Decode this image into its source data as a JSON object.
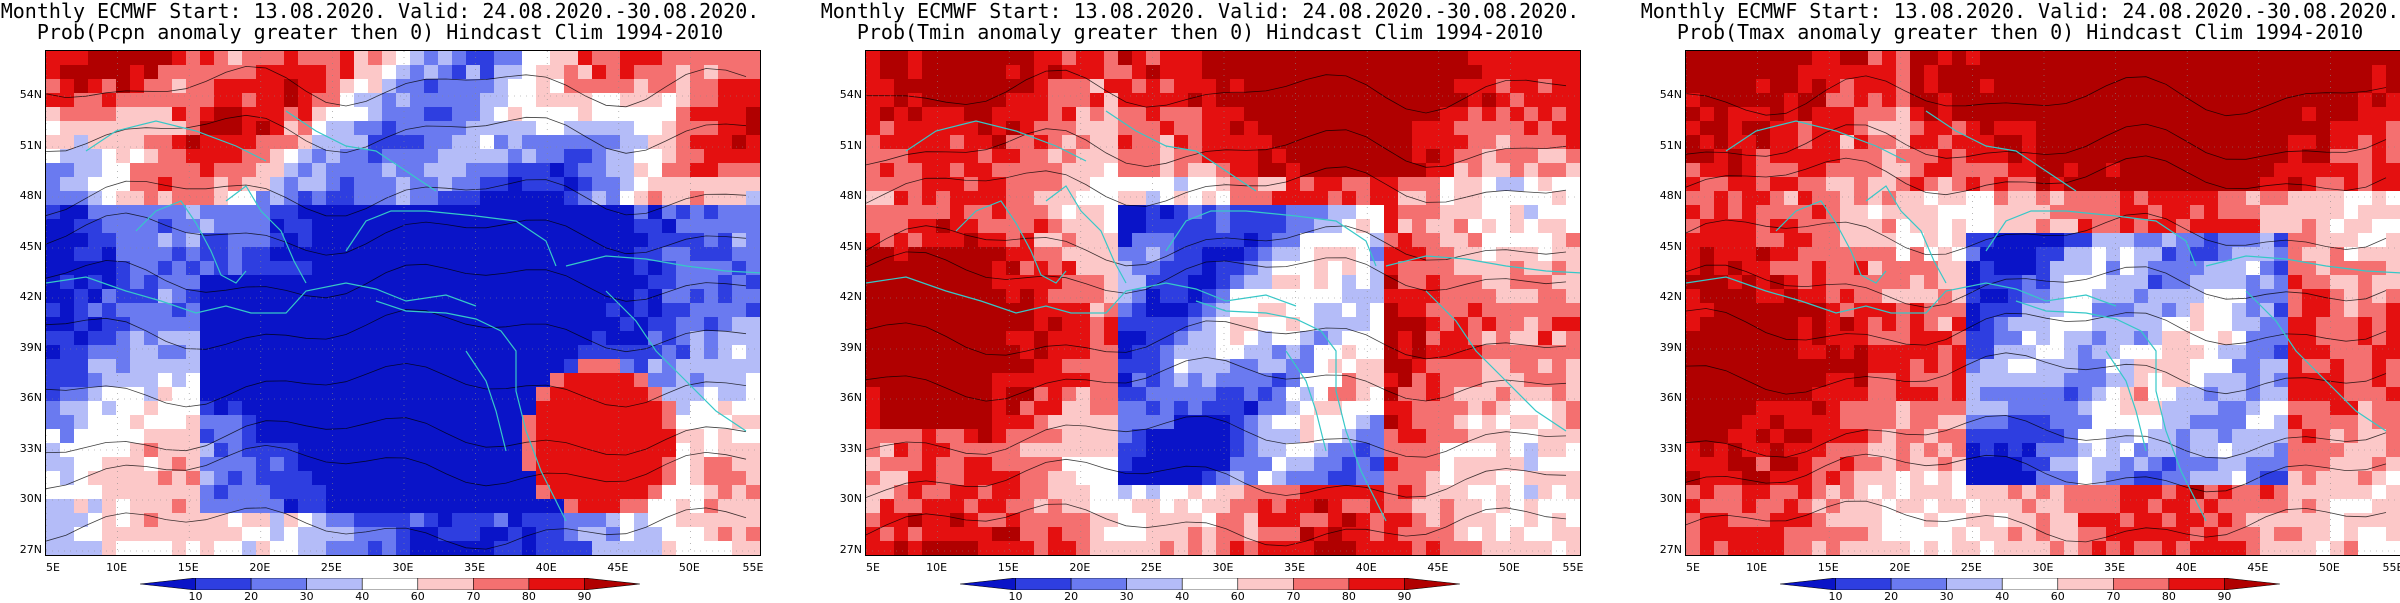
{
  "panels": [
    {
      "title_line1": "Monthly ECMWF Start: 13.08.2020. Valid: 24.08.2020.-30.08.2020.",
      "title_line2": "Prob(Pcpn anomaly greater then 0) Hindcast Clim 1994-2010",
      "variable": "Pcpn"
    },
    {
      "title_line1": "Monthly ECMWF Start: 13.08.2020. Valid: 24.08.2020.-30.08.2020.",
      "title_line2": "Prob(Tmin anomaly greater then 0) Hindcast Clim 1994-2010",
      "variable": "Tmin"
    },
    {
      "title_line1": "Monthly ECMWF Start: 13.08.2020. Valid: 24.08.2020.-30.08.2020.",
      "title_line2": "Prob(Tmax anomaly greater then 0) Hindcast Clim 1994-2010",
      "variable": "Tmax"
    }
  ],
  "lat_labels": [
    "54N",
    "51N",
    "48N",
    "45N",
    "42N",
    "39N",
    "36N",
    "33N",
    "30N",
    "27N"
  ],
  "lon_labels": [
    "5E",
    "10E",
    "15E",
    "20E",
    "25E",
    "30E",
    "35E",
    "40E",
    "45E",
    "50E",
    "55E"
  ],
  "colorbar_labels": [
    "10",
    "20",
    "30",
    "40",
    "60",
    "70",
    "80",
    "90"
  ],
  "colors": {
    "levels": [
      "#0a14c8",
      "#2e3ee0",
      "#6a7af0",
      "#b4bcf8",
      "#ffffff",
      "#fcc8c8",
      "#f47070",
      "#e41010",
      "#b00000"
    ],
    "coast": "#36c8c8",
    "contour": "#000000"
  }
}
